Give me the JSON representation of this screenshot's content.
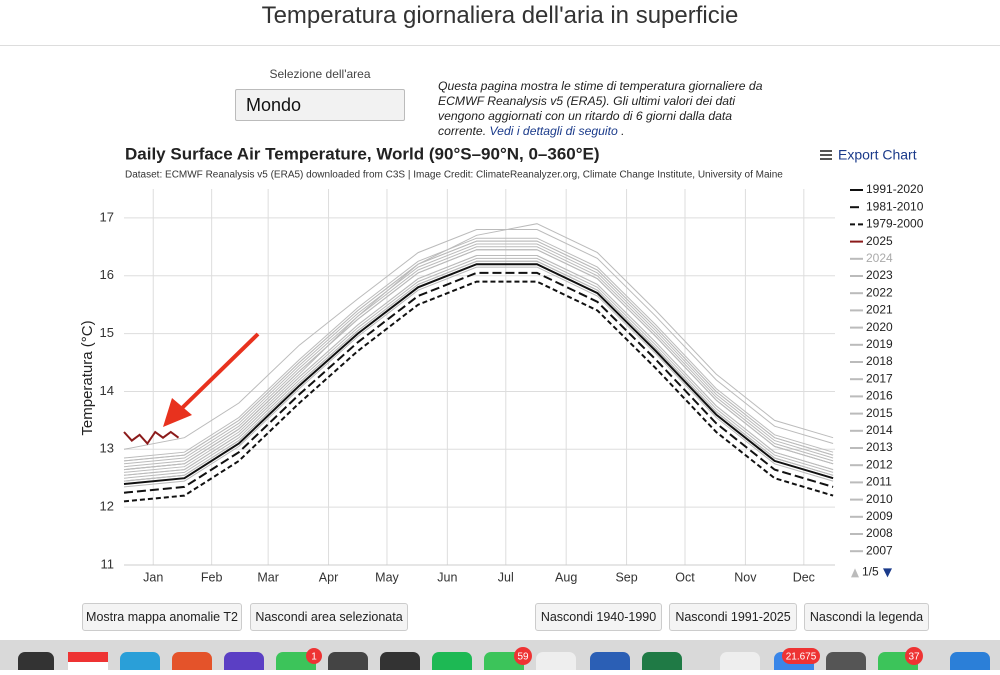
{
  "header": {
    "title": "Temperatura giornaliera dell'aria in superficie"
  },
  "area_selector": {
    "label": "Selezione dell'area",
    "value": "Mondo"
  },
  "description": {
    "text": "Questa pagina mostra le stime di temperatura giornaliere da ECMWF Reanalysis v5 (ERA5). Gli ultimi valori dei dati vengono aggiornati con un ritardo di 6 giorni dalla data corrente.",
    "link": "Vedi i dettagli di seguito",
    "end": "."
  },
  "chart_data": {
    "type": "line",
    "title": "Daily Surface Air Temperature, World (90°S–90°N, 0–360°E)",
    "subtitle": "Dataset: ECMWF Reanalysis v5 (ERA5) downloaded from C3S | Image Credit: ClimateReanalyzer.org, Climate Change Institute, University of Maine",
    "y_label": "Temperatura (°C)",
    "export": "Export Chart",
    "legend_page": "1/5",
    "grid": true,
    "xlim": [
      1,
      366
    ],
    "ylim": [
      11,
      17.5
    ],
    "yticks": [
      11,
      12,
      13,
      14,
      15,
      16,
      17
    ],
    "xticks": [
      {
        "value": 16,
        "label": "Jan"
      },
      {
        "value": 46,
        "label": "Feb"
      },
      {
        "value": 75,
        "label": "Mar"
      },
      {
        "value": 106,
        "label": "Apr"
      },
      {
        "value": 136,
        "label": "May"
      },
      {
        "value": 167,
        "label": "Jun"
      },
      {
        "value": 197,
        "label": "Jul"
      },
      {
        "value": 228,
        "label": "Aug"
      },
      {
        "value": 259,
        "label": "Sep"
      },
      {
        "value": 289,
        "label": "Oct"
      },
      {
        "value": 320,
        "label": "Nov"
      },
      {
        "value": 350,
        "label": "Dec"
      }
    ],
    "x": [
      1,
      32,
      60,
      91,
      121,
      152,
      182,
      213,
      244,
      274,
      305,
      335,
      365
    ],
    "series": [
      {
        "name": "1991-2020",
        "color": "#111111",
        "dash": "solid",
        "values": [
          12.4,
          12.5,
          13.1,
          14.1,
          15.0,
          15.8,
          16.2,
          16.2,
          15.7,
          14.7,
          13.6,
          12.8,
          12.5
        ]
      },
      {
        "name": "1981-2010",
        "color": "#111111",
        "dash": "longdash",
        "values": [
          12.25,
          12.35,
          12.95,
          13.95,
          14.85,
          15.65,
          16.05,
          16.05,
          15.55,
          14.55,
          13.45,
          12.65,
          12.35
        ]
      },
      {
        "name": "1979-2000",
        "color": "#111111",
        "dash": "dash",
        "values": [
          12.1,
          12.2,
          12.8,
          13.8,
          14.7,
          15.5,
          15.9,
          15.9,
          15.4,
          14.4,
          13.3,
          12.5,
          12.2
        ]
      },
      {
        "name": "2025",
        "color": "#8b1a1a",
        "dash": "solid",
        "x": [
          1,
          5,
          9,
          13,
          17,
          21,
          25,
          29
        ],
        "values": [
          13.3,
          13.15,
          13.25,
          13.1,
          13.3,
          13.2,
          13.3,
          13.2
        ]
      },
      {
        "name": "2024",
        "color": "#bbbbbb",
        "dash": "solid",
        "values": [
          13.0,
          13.2,
          13.8,
          14.8,
          15.6,
          16.4,
          16.8,
          16.8,
          16.3,
          15.3,
          14.2,
          13.4,
          13.1
        ]
      },
      {
        "name": "2023",
        "color": "#bbbbbb",
        "dash": "solid",
        "values": [
          12.6,
          12.7,
          13.3,
          14.3,
          15.3,
          16.2,
          16.7,
          16.9,
          16.4,
          15.4,
          14.3,
          13.5,
          13.2
        ]
      },
      {
        "name": "2022",
        "color": "#bbbbbb",
        "dash": "solid",
        "values": [
          12.7,
          12.8,
          13.4,
          14.4,
          15.3,
          16.1,
          16.5,
          16.5,
          16.0,
          15.0,
          13.9,
          13.1,
          12.8
        ]
      },
      {
        "name": "2021",
        "color": "#bbbbbb",
        "dash": "solid",
        "values": [
          12.65,
          12.75,
          13.35,
          14.35,
          15.25,
          16.05,
          16.45,
          16.45,
          15.95,
          14.95,
          13.85,
          13.05,
          12.75
        ]
      },
      {
        "name": "2020",
        "color": "#bbbbbb",
        "dash": "solid",
        "values": [
          12.8,
          12.9,
          13.5,
          14.5,
          15.4,
          16.2,
          16.6,
          16.6,
          16.1,
          15.1,
          14.0,
          13.2,
          12.9
        ]
      },
      {
        "name": "2019",
        "color": "#bbbbbb",
        "dash": "solid",
        "values": [
          12.8,
          12.9,
          13.5,
          14.5,
          15.4,
          16.2,
          16.6,
          16.6,
          16.1,
          15.1,
          14.0,
          13.2,
          12.9
        ]
      },
      {
        "name": "2018",
        "color": "#bbbbbb",
        "dash": "solid",
        "values": [
          12.65,
          12.75,
          13.35,
          14.35,
          15.25,
          16.05,
          16.45,
          16.45,
          15.95,
          14.95,
          13.85,
          13.05,
          12.75
        ]
      },
      {
        "name": "2017",
        "color": "#bbbbbb",
        "dash": "solid",
        "values": [
          12.75,
          12.85,
          13.45,
          14.45,
          15.35,
          16.15,
          16.55,
          16.55,
          16.05,
          15.05,
          13.95,
          13.15,
          12.85
        ]
      },
      {
        "name": "2016",
        "color": "#bbbbbb",
        "dash": "solid",
        "values": [
          12.85,
          12.95,
          13.55,
          14.55,
          15.45,
          16.25,
          16.65,
          16.65,
          16.15,
          15.15,
          14.05,
          13.25,
          12.95
        ]
      },
      {
        "name": "2015",
        "color": "#bbbbbb",
        "dash": "solid",
        "values": [
          12.65,
          12.75,
          13.35,
          14.35,
          15.25,
          16.05,
          16.45,
          16.45,
          15.95,
          14.95,
          13.85,
          13.05,
          12.75
        ]
      },
      {
        "name": "2014",
        "color": "#bbbbbb",
        "dash": "solid",
        "values": [
          12.55,
          12.65,
          13.25,
          14.25,
          15.15,
          15.95,
          16.35,
          16.35,
          15.85,
          14.85,
          13.75,
          12.95,
          12.65
        ]
      },
      {
        "name": "2013",
        "color": "#bbbbbb",
        "dash": "solid",
        "values": [
          12.5,
          12.6,
          13.2,
          14.2,
          15.1,
          15.9,
          16.3,
          16.3,
          15.8,
          14.8,
          13.7,
          12.9,
          12.6
        ]
      },
      {
        "name": "2012",
        "color": "#bbbbbb",
        "dash": "solid",
        "values": [
          12.45,
          12.55,
          13.15,
          14.15,
          15.05,
          15.85,
          16.25,
          16.25,
          15.75,
          14.75,
          13.65,
          12.85,
          12.55
        ]
      },
      {
        "name": "2011",
        "color": "#bbbbbb",
        "dash": "solid",
        "values": [
          12.4,
          12.5,
          13.1,
          14.1,
          15.0,
          15.8,
          16.2,
          16.2,
          15.7,
          14.7,
          13.6,
          12.8,
          12.5
        ]
      },
      {
        "name": "2010",
        "color": "#bbbbbb",
        "dash": "solid",
        "values": [
          12.55,
          12.65,
          13.25,
          14.25,
          15.15,
          15.95,
          16.35,
          16.35,
          15.85,
          14.85,
          13.75,
          12.95,
          12.65
        ]
      },
      {
        "name": "2009",
        "color": "#bbbbbb",
        "dash": "solid",
        "values": [
          12.45,
          12.55,
          13.15,
          14.15,
          15.05,
          15.85,
          16.25,
          16.25,
          15.75,
          14.75,
          13.65,
          12.85,
          12.55
        ]
      },
      {
        "name": "2008",
        "color": "#bbbbbb",
        "dash": "solid",
        "values": [
          12.35,
          12.45,
          13.05,
          14.05,
          14.95,
          15.75,
          16.15,
          16.15,
          15.65,
          14.65,
          13.55,
          12.75,
          12.45
        ]
      },
      {
        "name": "2007",
        "color": "#bbbbbb",
        "dash": "solid",
        "values": [
          12.45,
          12.55,
          13.15,
          14.15,
          15.05,
          15.85,
          16.25,
          16.25,
          15.75,
          14.75,
          13.65,
          12.85,
          12.55
        ]
      }
    ]
  },
  "buttons": [
    "Mostra mappa anomalie T2",
    "Nascondi area selezionata",
    "Nascondi 1940-1990",
    "Nascondi 1991-2025",
    "Nascondi la legenda"
  ],
  "dock": {
    "badges": [
      "1",
      "59",
      "21.675",
      "37"
    ]
  }
}
